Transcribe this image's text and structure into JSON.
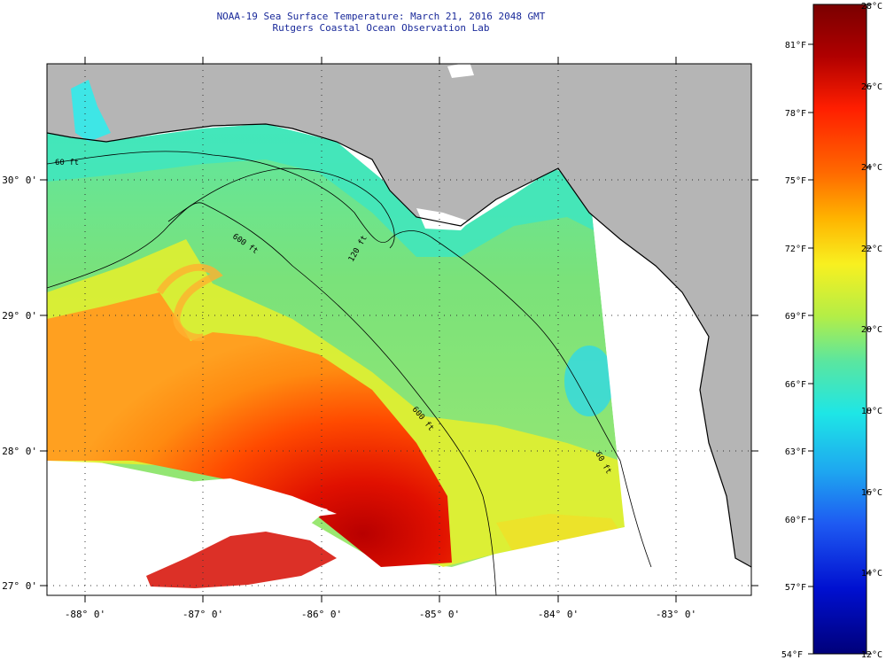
{
  "title_line1": "NOAA-19 Sea Surface Temperature:  March 21, 2016 2048 GMT",
  "title_line2": "Rutgers Coastal Ocean Observation Lab",
  "map": {
    "lon_labels": [
      "-88° 0'",
      "-87° 0'",
      "-86° 0'",
      "-85° 0'",
      "-84° 0'",
      "-83° 0'"
    ],
    "lat_labels": [
      "30° 0'",
      "29° 0'",
      "28° 0'",
      "27° 0'"
    ],
    "contour_labels": [
      "60 ft",
      "120 ft",
      "600 ft",
      "600 ft",
      "60 ft"
    ],
    "colors": {
      "land": "#b5b5b5",
      "no_data": "#ffffff",
      "coast": "#000000",
      "grid": "#555555"
    }
  },
  "colorbar": {
    "celsius_labels": [
      "28°C",
      "26°C",
      "24°C",
      "22°C",
      "20°C",
      "18°C",
      "16°C",
      "14°C",
      "12°C"
    ],
    "fahrenheit_labels": [
      "81°F",
      "78°F",
      "75°F",
      "72°F",
      "69°F",
      "66°F",
      "63°F",
      "60°F",
      "57°F",
      "54°F"
    ],
    "colors_top_to_bottom": [
      "#7a0000",
      "#c00000",
      "#ff1e00",
      "#ff7a00",
      "#ffc800",
      "#f2f21e",
      "#a6ee50",
      "#4de6b0",
      "#1ee6e6",
      "#1e9ef2",
      "#1e50f2",
      "#0000cc",
      "#00007a"
    ]
  }
}
